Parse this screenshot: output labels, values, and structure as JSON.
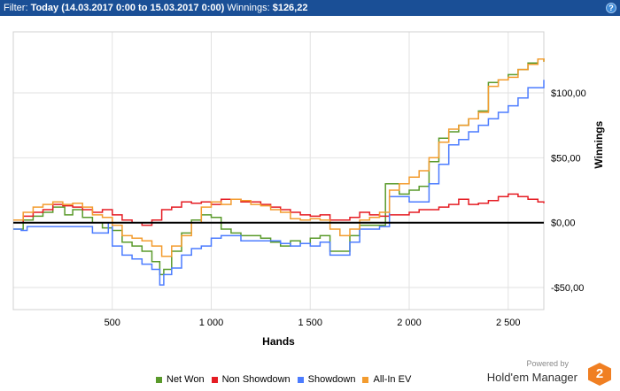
{
  "filter_bar": {
    "prefix": "Filter:",
    "range": "Today (14.03.2017 0:00 to 15.03.2017 0:00)",
    "winnings_label": "Winnings:",
    "winnings_value": "$126,22",
    "help_icon": "?"
  },
  "chart_data": {
    "type": "line",
    "xlabel": "Hands",
    "ylabel": "Winnings",
    "xlim": [
      0,
      2680
    ],
    "ylim": [
      -67,
      147
    ],
    "x_ticks": [
      500,
      1000,
      1500,
      2000,
      2500
    ],
    "x_tick_labels": [
      "500",
      "1 000",
      "1 500",
      "2 000",
      "2 500"
    ],
    "y_ticks": [
      -50,
      0,
      50,
      100
    ],
    "y_tick_labels": [
      "-$50,00",
      "$0,00",
      "$50,00",
      "$100,00"
    ],
    "grid": true,
    "zero_line": true,
    "legend": "bottom",
    "series": [
      {
        "name": "Net Won",
        "color": "#5a9a2b",
        "x": [
          0,
          50,
          100,
          150,
          200,
          260,
          300,
          350,
          400,
          450,
          500,
          550,
          600,
          650,
          700,
          740,
          760,
          800,
          850,
          900,
          950,
          1000,
          1050,
          1100,
          1150,
          1200,
          1250,
          1300,
          1350,
          1400,
          1450,
          1500,
          1550,
          1600,
          1650,
          1700,
          1750,
          1800,
          1850,
          1880,
          1900,
          1950,
          2000,
          2050,
          2100,
          2150,
          2200,
          2250,
          2300,
          2350,
          2400,
          2450,
          2500,
          2550,
          2600,
          2650,
          2680
        ],
        "y": [
          -5,
          2,
          5,
          8,
          12,
          6,
          10,
          4,
          0,
          -4,
          -6,
          -15,
          -18,
          -22,
          -30,
          -40,
          -36,
          -22,
          -8,
          2,
          6,
          4,
          -5,
          -8,
          -10,
          -10,
          -12,
          -15,
          -18,
          -14,
          -16,
          -12,
          -10,
          -22,
          -22,
          -10,
          -2,
          -2,
          -2,
          30,
          30,
          22,
          25,
          28,
          47,
          65,
          70,
          75,
          80,
          86,
          108,
          110,
          114,
          118,
          123,
          126,
          124
        ]
      },
      {
        "name": "Non Showdown",
        "color": "#e51c23",
        "x": [
          0,
          50,
          100,
          150,
          200,
          250,
          300,
          350,
          400,
          450,
          500,
          550,
          600,
          650,
          700,
          750,
          800,
          850,
          900,
          950,
          1000,
          1050,
          1100,
          1150,
          1200,
          1250,
          1300,
          1350,
          1400,
          1450,
          1500,
          1550,
          1600,
          1650,
          1700,
          1750,
          1800,
          1850,
          1900,
          1950,
          2000,
          2050,
          2100,
          2150,
          2200,
          2250,
          2300,
          2350,
          2400,
          2450,
          2500,
          2550,
          2600,
          2650,
          2680
        ],
        "y": [
          0,
          5,
          8,
          10,
          14,
          13,
          12,
          10,
          8,
          10,
          6,
          2,
          0,
          -2,
          2,
          10,
          12,
          16,
          15,
          16,
          14,
          18,
          18,
          16,
          16,
          14,
          12,
          10,
          8,
          6,
          5,
          6,
          2,
          2,
          4,
          8,
          6,
          5,
          6,
          6,
          8,
          10,
          10,
          12,
          14,
          18,
          14,
          15,
          17,
          20,
          22,
          20,
          18,
          16,
          15
        ]
      },
      {
        "name": "Showdown",
        "color": "#4c7cff",
        "x": [
          0,
          40,
          70,
          140,
          200,
          250,
          300,
          400,
          450,
          480,
          500,
          550,
          600,
          650,
          700,
          740,
          760,
          800,
          850,
          900,
          950,
          1000,
          1050,
          1100,
          1150,
          1200,
          1250,
          1300,
          1350,
          1400,
          1450,
          1500,
          1550,
          1600,
          1650,
          1700,
          1750,
          1800,
          1850,
          1900,
          1950,
          2000,
          2050,
          2100,
          2150,
          2200,
          2250,
          2300,
          2350,
          2400,
          2450,
          2500,
          2550,
          2600,
          2680
        ],
        "y": [
          -5,
          -6,
          -3,
          -3,
          -3,
          -3,
          -3,
          -8,
          -8,
          0,
          -18,
          -25,
          -28,
          -32,
          -36,
          -48,
          -40,
          -35,
          -25,
          -20,
          -18,
          -12,
          -10,
          -10,
          -14,
          -14,
          -14,
          -14,
          -16,
          -18,
          -16,
          -18,
          -15,
          -25,
          -25,
          -15,
          -5,
          -5,
          -3,
          20,
          20,
          16,
          16,
          30,
          45,
          60,
          64,
          70,
          75,
          80,
          85,
          90,
          96,
          104,
          110
        ]
      },
      {
        "name": "All-In EV",
        "color": "#f39c2f",
        "x": [
          0,
          50,
          100,
          150,
          200,
          250,
          300,
          350,
          400,
          450,
          500,
          550,
          600,
          650,
          700,
          750,
          800,
          850,
          900,
          950,
          1000,
          1050,
          1100,
          1150,
          1200,
          1250,
          1300,
          1350,
          1400,
          1450,
          1500,
          1550,
          1600,
          1650,
          1700,
          1750,
          1800,
          1850,
          1900,
          1950,
          2000,
          2050,
          2100,
          2150,
          2200,
          2250,
          2300,
          2350,
          2400,
          2450,
          2500,
          2550,
          2600,
          2650,
          2680
        ],
        "y": [
          2,
          8,
          12,
          14,
          16,
          14,
          15,
          12,
          6,
          4,
          -2,
          -10,
          -12,
          -14,
          -18,
          -26,
          -18,
          -10,
          0,
          12,
          16,
          14,
          18,
          17,
          14,
          13,
          10,
          8,
          3,
          2,
          3,
          2,
          -5,
          -10,
          -5,
          2,
          4,
          8,
          25,
          30,
          35,
          40,
          50,
          62,
          72,
          75,
          80,
          85,
          105,
          110,
          112,
          118,
          122,
          126,
          124
        ]
      }
    ]
  },
  "legend": {
    "items": [
      {
        "label": "Net Won",
        "color": "#5a9a2b"
      },
      {
        "label": "Non Showdown",
        "color": "#e51c23"
      },
      {
        "label": "Showdown",
        "color": "#4c7cff"
      },
      {
        "label": "All-In EV",
        "color": "#f39c2f"
      }
    ]
  },
  "branding": {
    "powered_by": "Powered by",
    "product": "Hold'em Manager",
    "logo_number": "2",
    "accent_color": "#f07f22"
  }
}
